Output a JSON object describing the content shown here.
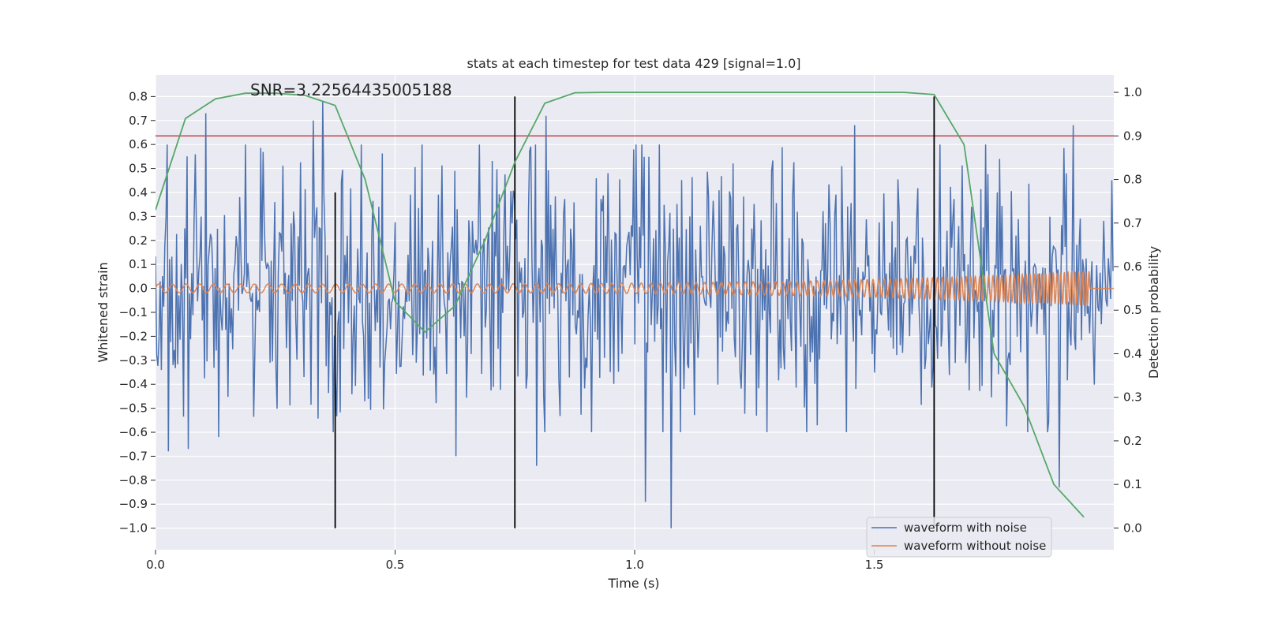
{
  "chart_data": {
    "type": "line",
    "title": "stats at each timestep for test data 429 [signal=1.0]",
    "xlabel": "Time (s)",
    "ylabel_left": "Whitened strain",
    "ylabel_right": "Detection probability",
    "xlim": [
      0.0,
      2.0
    ],
    "ylim_left": [
      -1.09,
      0.89
    ],
    "ylim_right": [
      -0.05,
      1.04
    ],
    "x_ticks": [
      0.0,
      0.5,
      1.0,
      1.5
    ],
    "x_tick_labels": [
      "0.0",
      "0.5",
      "1.0",
      "1.5"
    ],
    "y_left_ticks": [
      0.8,
      0.7,
      0.6,
      0.5,
      0.4,
      0.3,
      0.2,
      0.1,
      0.0,
      -0.1,
      -0.2,
      -0.3,
      -0.4,
      -0.5,
      -0.6,
      -0.7,
      -0.8,
      -0.9,
      -1.0
    ],
    "y_left_tick_labels": [
      "0.8",
      "0.7",
      "0.6",
      "0.5",
      "0.4",
      "0.3",
      "0.2",
      "0.1",
      "0.0",
      "−0.1",
      "−0.2",
      "−0.3",
      "−0.4",
      "−0.5",
      "−0.6",
      "−0.7",
      "−0.8",
      "−0.9",
      "−1.0"
    ],
    "y_right_ticks": [
      1.0,
      0.9,
      0.8,
      0.7,
      0.6,
      0.5,
      0.4,
      0.3,
      0.2,
      0.1,
      0.0
    ],
    "y_right_tick_labels": [
      "1.0",
      "0.9",
      "0.8",
      "0.7",
      "0.6",
      "0.5",
      "0.4",
      "0.3",
      "0.2",
      "0.1",
      "0.0"
    ],
    "annotation": "SNR=3.22564435005188",
    "threshold_line": {
      "value": 0.9,
      "axis": "right",
      "color": "#c44e52"
    },
    "vertical_lines": [
      {
        "x": 0.375,
        "ymin": -1.0,
        "ymax": 0.4,
        "color": "#000000"
      },
      {
        "x": 0.75,
        "ymin": -1.0,
        "ymax": 0.8,
        "color": "#000000"
      },
      {
        "x": 1.625,
        "ymin": -1.0,
        "ymax": 0.8,
        "color": "#000000"
      }
    ],
    "detection_probability": {
      "name": "detection probability",
      "color": "#55a868",
      "x": [
        0.0,
        0.0625,
        0.125,
        0.1875,
        0.25,
        0.3125,
        0.375,
        0.4375,
        0.5,
        0.5625,
        0.625,
        0.6875,
        0.75,
        0.8125,
        0.875,
        0.9375,
        1.0,
        1.0625,
        1.125,
        1.1875,
        1.25,
        1.3125,
        1.375,
        1.4375,
        1.5,
        1.5625,
        1.625,
        1.6875,
        1.75,
        1.8125,
        1.875,
        1.9375
      ],
      "y": [
        0.73,
        0.94,
        0.985,
        0.998,
        0.998,
        0.993,
        0.97,
        0.8,
        0.52,
        0.45,
        0.51,
        0.66,
        0.84,
        0.975,
        0.999,
        1.0,
        1.0,
        1.0,
        1.0,
        1.0,
        1.0,
        1.0,
        1.0,
        1.0,
        1.0,
        1.0,
        0.995,
        0.88,
        0.4,
        0.28,
        0.1,
        0.025
      ]
    },
    "series": [
      {
        "name": "waveform with noise",
        "color": "#4c72b0",
        "generator": "pseudo-random whitened noise, sd ~0.27",
        "noise_sd": 0.27,
        "random_seed": 429,
        "sample_spacing_s": 0.00244,
        "spikes": [
          {
            "x": 0.105,
            "y": 0.73
          },
          {
            "x": 0.35,
            "y": 0.78
          },
          {
            "x": 0.627,
            "y": 0.78
          },
          {
            "x": 0.33,
            "y": 0.7
          },
          {
            "x": 0.028,
            "y": -0.68
          },
          {
            "x": 0.068,
            "y": -0.67
          },
          {
            "x": 0.132,
            "y": -0.62
          },
          {
            "x": 0.627,
            "y": -0.7
          },
          {
            "x": 0.795,
            "y": -0.74
          },
          {
            "x": 1.022,
            "y": -0.89
          },
          {
            "x": 1.075,
            "y": -1.0
          },
          {
            "x": 1.885,
            "y": -0.83
          },
          {
            "x": 0.815,
            "y": 0.72
          },
          {
            "x": 1.46,
            "y": 0.68
          },
          {
            "x": 1.915,
            "y": 0.68
          },
          {
            "x": 0.372,
            "y": -0.6
          }
        ]
      },
      {
        "name": "waveform without noise",
        "color": "#dd8452",
        "generator": "chirp",
        "x_end": 1.95,
        "amplitude_start": 0.018,
        "amplitude_end": 0.072,
        "frequency_start_hz": 35,
        "frequency_end_hz": 140
      }
    ],
    "legend": {
      "position": "lower-right",
      "entries": [
        {
          "label": "waveform with noise",
          "color": "#4c72b0"
        },
        {
          "label": "waveform without noise",
          "color": "#dd8452"
        }
      ]
    },
    "grid": true,
    "plot_background": "#eaeaf2"
  }
}
